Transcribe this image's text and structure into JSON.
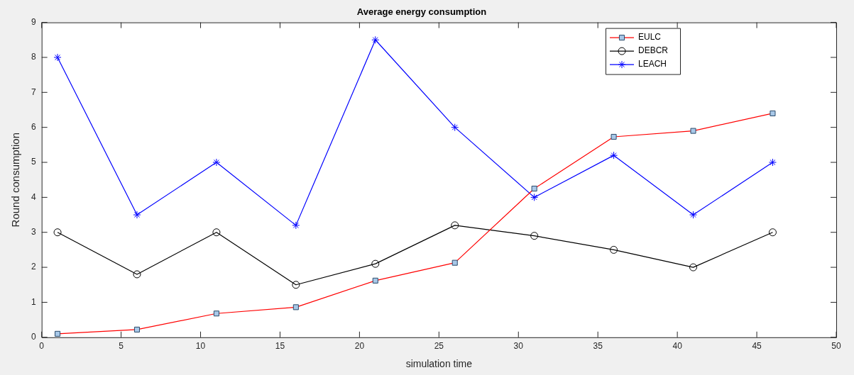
{
  "chart_data": {
    "type": "line",
    "title": "Average energy consumption",
    "xlabel": "simulation time",
    "ylabel": "Round consumption",
    "x": [
      1,
      6,
      11,
      16,
      21,
      26,
      31,
      36,
      41,
      46
    ],
    "series": [
      {
        "name": "EULC",
        "color": "#ff0000",
        "marker": "square",
        "values": [
          0.1,
          0.22,
          0.68,
          0.86,
          1.62,
          2.13,
          4.25,
          5.73,
          5.9,
          6.4
        ]
      },
      {
        "name": "DEBCR",
        "color": "#000000",
        "marker": "circle",
        "values": [
          3,
          1.8,
          3,
          1.5,
          2.1,
          3.2,
          2.9,
          2.5,
          2,
          3
        ]
      },
      {
        "name": "LEACH",
        "color": "#0000ff",
        "marker": "cross",
        "values": [
          8,
          3.5,
          5,
          3.2,
          8.5,
          6,
          4,
          5.2,
          3.5,
          5
        ]
      }
    ],
    "xlim": [
      0,
      50
    ],
    "xticks": [
      0,
      5,
      10,
      15,
      20,
      25,
      30,
      35,
      40,
      45,
      50
    ],
    "ylim": [
      0,
      9
    ],
    "yticks": [
      0,
      1,
      2,
      3,
      4,
      5,
      6,
      7,
      8,
      9
    ],
    "grid": false,
    "legend": "top right",
    "line_style": "solid"
  }
}
